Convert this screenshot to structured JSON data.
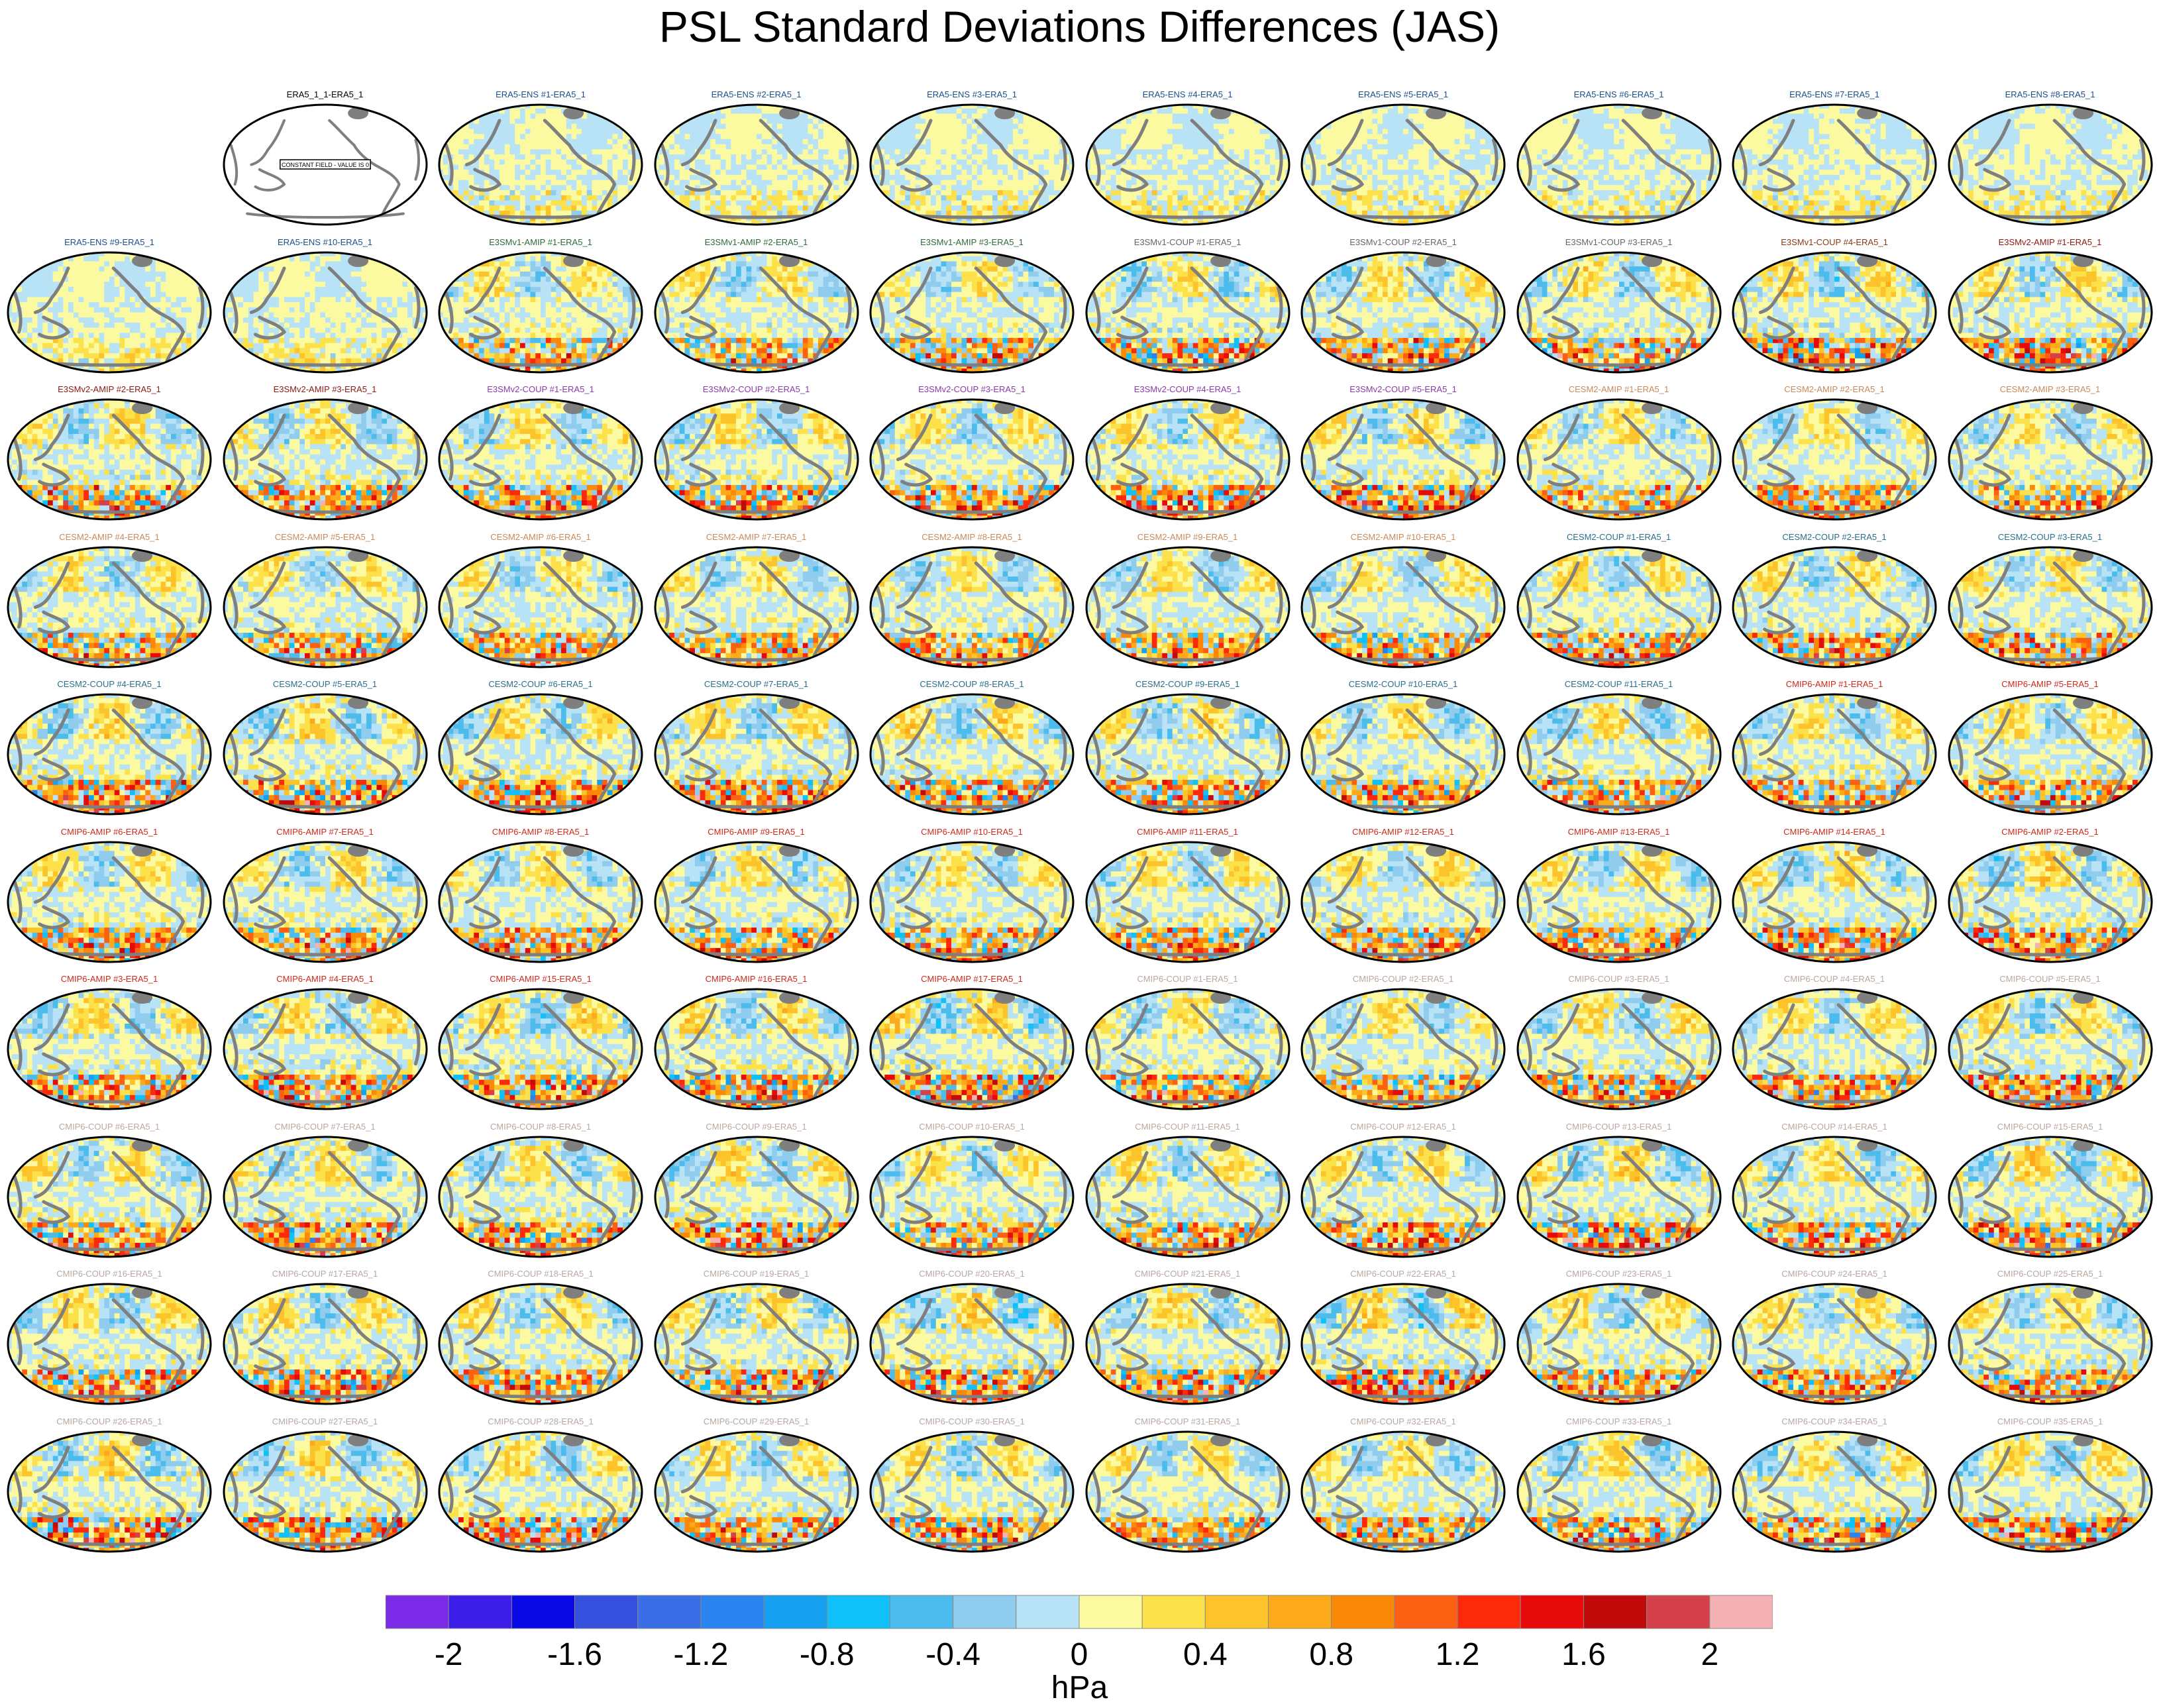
{
  "title": "PSL Standard Deviations Differences (JAS)",
  "colors": {
    "frame": "#000000",
    "land_outline": "#7f7f7f",
    "label_colors": {
      "ref": "#000000",
      "era5": "#1a4f8c",
      "e3smv1_amip": "#2e6b3a",
      "e3smv1_coup": "#666666",
      "e3smv1_coup_b": "#8b3a10",
      "e3smv2_amip": "#8b1a10",
      "e3smv2_coup": "#8a3aa8",
      "cesm2_amip": "#c88a5a",
      "cesm2_coup": "#2a6f8a",
      "cmip6_amip": "#cc2a1a",
      "cmip6_coup": "#b8a8a0"
    }
  },
  "colorbar": {
    "levels": [
      -2.2,
      -2,
      -1.8,
      -1.6,
      -1.4,
      -1.2,
      -1,
      -0.8,
      -0.6,
      -0.4,
      -0.2,
      0,
      0.2,
      0.4,
      0.6,
      0.8,
      1,
      1.2,
      1.4,
      1.6,
      1.8,
      2,
      2.2
    ],
    "colors": [
      "#7b2ae8",
      "#3d1ee8",
      "#0a0ae6",
      "#3450dc",
      "#3a6ee6",
      "#2a84f0",
      "#16a0f0",
      "#10c0f8",
      "#4cbcec",
      "#90cced",
      "#b8e2f6",
      "#fcfaa0",
      "#fce14a",
      "#fcc42a",
      "#fcaa1a",
      "#fc8808",
      "#fc6012",
      "#fc2a0a",
      "#e60a0a",
      "#c30a0a",
      "#d6404a",
      "#f4b2b4"
    ],
    "tick_labels": [
      "-2",
      "-1.6",
      "-1.2",
      "-0.8",
      "-0.4",
      "0",
      "0.4",
      "0.8",
      "1.2",
      "1.6",
      "2"
    ],
    "tick_values": [
      -2,
      -1.6,
      -1.2,
      -0.8,
      -0.4,
      0,
      0.4,
      0.8,
      1.2,
      1.6,
      2
    ],
    "units": "hPa"
  },
  "reference_panel": {
    "label": "ERA5_1_1-ERA5_1",
    "note": "CONSTANT FIELD - VALUE IS 0"
  },
  "panels": [
    {
      "label": "ERA5-ENS   #1-ERA5_1",
      "group": "era5",
      "intensity": 0.25
    },
    {
      "label": "ERA5-ENS   #2-ERA5_1",
      "group": "era5",
      "intensity": 0.25
    },
    {
      "label": "ERA5-ENS   #3-ERA5_1",
      "group": "era5",
      "intensity": 0.25
    },
    {
      "label": "ERA5-ENS   #4-ERA5_1",
      "group": "era5",
      "intensity": 0.25
    },
    {
      "label": "ERA5-ENS   #5-ERA5_1",
      "group": "era5",
      "intensity": 0.25
    },
    {
      "label": "ERA5-ENS   #6-ERA5_1",
      "group": "era5",
      "intensity": 0.25
    },
    {
      "label": "ERA5-ENS   #7-ERA5_1",
      "group": "era5",
      "intensity": 0.25
    },
    {
      "label": "ERA5-ENS   #8-ERA5_1",
      "group": "era5",
      "intensity": 0.25
    },
    {
      "label": "ERA5-ENS   #9-ERA5_1",
      "group": "era5",
      "intensity": 0.25
    },
    {
      "label": "ERA5-ENS   #10-ERA5_1",
      "group": "era5",
      "intensity": 0.25
    },
    {
      "label": "E3SMv1-AMIP #1-ERA5_1",
      "group": "e3smv1_amip",
      "intensity": 0.8
    },
    {
      "label": "E3SMv1-AMIP #2-ERA5_1",
      "group": "e3smv1_amip",
      "intensity": 0.8
    },
    {
      "label": "E3SMv1-AMIP #3-ERA5_1",
      "group": "e3smv1_amip",
      "intensity": 0.8
    },
    {
      "label": "E3SMv1-COUP #1-ERA5_1",
      "group": "e3smv1_coup",
      "intensity": 0.9
    },
    {
      "label": "E3SMv1-COUP #2-ERA5_1",
      "group": "e3smv1_coup",
      "intensity": 0.9
    },
    {
      "label": "E3SMv1-COUP #3-ERA5_1",
      "group": "e3smv1_coup",
      "intensity": 0.9
    },
    {
      "label": "E3SMv1-COUP #4-ERA5_1",
      "group": "e3smv1_coup_b",
      "intensity": 1.0
    },
    {
      "label": "E3SMv2-AMIP #1-ERA5_1",
      "group": "e3smv2_amip",
      "intensity": 0.9
    },
    {
      "label": "E3SMv2-AMIP #2-ERA5_1",
      "group": "e3smv2_amip",
      "intensity": 0.9
    },
    {
      "label": "E3SMv2-AMIP #3-ERA5_1",
      "group": "e3smv2_amip",
      "intensity": 0.9
    },
    {
      "label": "E3SMv2-COUP #1-ERA5_1",
      "group": "e3smv2_coup",
      "intensity": 0.9
    },
    {
      "label": "E3SMv2-COUP #2-ERA5_1",
      "group": "e3smv2_coup",
      "intensity": 0.9
    },
    {
      "label": "E3SMv2-COUP #3-ERA5_1",
      "group": "e3smv2_coup",
      "intensity": 0.9
    },
    {
      "label": "E3SMv2-COUP #4-ERA5_1",
      "group": "e3smv2_coup",
      "intensity": 0.9
    },
    {
      "label": "E3SMv2-COUP #5-ERA5_1",
      "group": "e3smv2_coup",
      "intensity": 0.95
    },
    {
      "label": "CESM2-AMIP #1-ERA5_1",
      "group": "cesm2_amip",
      "intensity": 0.8
    },
    {
      "label": "CESM2-AMIP #2-ERA5_1",
      "group": "cesm2_amip",
      "intensity": 0.8
    },
    {
      "label": "CESM2-AMIP #3-ERA5_1",
      "group": "cesm2_amip",
      "intensity": 0.8
    },
    {
      "label": "CESM2-AMIP #4-ERA5_1",
      "group": "cesm2_amip",
      "intensity": 0.8
    },
    {
      "label": "CESM2-AMIP #5-ERA5_1",
      "group": "cesm2_amip",
      "intensity": 0.8
    },
    {
      "label": "CESM2-AMIP #6-ERA5_1",
      "group": "cesm2_amip",
      "intensity": 0.8
    },
    {
      "label": "CESM2-AMIP #7-ERA5_1",
      "group": "cesm2_amip",
      "intensity": 0.8
    },
    {
      "label": "CESM2-AMIP #8-ERA5_1",
      "group": "cesm2_amip",
      "intensity": 0.8
    },
    {
      "label": "CESM2-AMIP #9-ERA5_1",
      "group": "cesm2_amip",
      "intensity": 0.8
    },
    {
      "label": "CESM2-AMIP #10-ERA5_1",
      "group": "cesm2_amip",
      "intensity": 0.8
    },
    {
      "label": "CESM2-COUP #1-ERA5_1",
      "group": "cesm2_coup",
      "intensity": 0.85
    },
    {
      "label": "CESM2-COUP #2-ERA5_1",
      "group": "cesm2_coup",
      "intensity": 0.85
    },
    {
      "label": "CESM2-COUP #3-ERA5_1",
      "group": "cesm2_coup",
      "intensity": 0.85
    },
    {
      "label": "CESM2-COUP #4-ERA5_1",
      "group": "cesm2_coup",
      "intensity": 0.95
    },
    {
      "label": "CESM2-COUP #5-ERA5_1",
      "group": "cesm2_coup",
      "intensity": 0.95
    },
    {
      "label": "CESM2-COUP #6-ERA5_1",
      "group": "cesm2_coup",
      "intensity": 0.95
    },
    {
      "label": "CESM2-COUP #7-ERA5_1",
      "group": "cesm2_coup",
      "intensity": 0.95
    },
    {
      "label": "CESM2-COUP #8-ERA5_1",
      "group": "cesm2_coup",
      "intensity": 0.95
    },
    {
      "label": "CESM2-COUP #9-ERA5_1",
      "group": "cesm2_coup",
      "intensity": 0.95
    },
    {
      "label": "CESM2-COUP #10-ERA5_1",
      "group": "cesm2_coup",
      "intensity": 0.9
    },
    {
      "label": "CESM2-COUP #11-ERA5_1",
      "group": "cesm2_coup",
      "intensity": 0.9
    },
    {
      "label": "CMIP6-AMIP #1-ERA5_1",
      "group": "cmip6_amip",
      "intensity": 0.85
    },
    {
      "label": "CMIP6-AMIP #5-ERA5_1",
      "group": "cmip6_amip",
      "intensity": 0.85
    },
    {
      "label": "CMIP6-AMIP #6-ERA5_1",
      "group": "cmip6_amip",
      "intensity": 0.85
    },
    {
      "label": "CMIP6-AMIP #7-ERA5_1",
      "group": "cmip6_amip",
      "intensity": 0.9
    },
    {
      "label": "CMIP6-AMIP #8-ERA5_1",
      "group": "cmip6_amip",
      "intensity": 0.85
    },
    {
      "label": "CMIP6-AMIP #9-ERA5_1",
      "group": "cmip6_amip",
      "intensity": 0.85
    },
    {
      "label": "CMIP6-AMIP #10-ERA5_1",
      "group": "cmip6_amip",
      "intensity": 0.85
    },
    {
      "label": "CMIP6-AMIP #11-ERA5_1",
      "group": "cmip6_amip",
      "intensity": 0.85
    },
    {
      "label": "CMIP6-AMIP #12-ERA5_1",
      "group": "cmip6_amip",
      "intensity": 0.85
    },
    {
      "label": "CMIP6-AMIP #13-ERA5_1",
      "group": "cmip6_amip",
      "intensity": 0.85
    },
    {
      "label": "CMIP6-AMIP #14-ERA5_1",
      "group": "cmip6_amip",
      "intensity": 0.9
    },
    {
      "label": "CMIP6-AMIP #2-ERA5_1",
      "group": "cmip6_amip",
      "intensity": 1.0
    },
    {
      "label": "CMIP6-AMIP #3-ERA5_1",
      "group": "cmip6_amip",
      "intensity": 0.9
    },
    {
      "label": "CMIP6-AMIP #4-ERA5_1",
      "group": "cmip6_amip",
      "intensity": 0.95
    },
    {
      "label": "CMIP6-AMIP #15-ERA5_1",
      "group": "cmip6_amip",
      "intensity": 1.0
    },
    {
      "label": "CMIP6-AMIP #16-ERA5_1",
      "group": "cmip6_amip",
      "intensity": 1.0
    },
    {
      "label": "CMIP6-AMIP #17-ERA5_1",
      "group": "cmip6_amip",
      "intensity": 1.1
    },
    {
      "label": "CMIP6-COUP #1-ERA5_1",
      "group": "cmip6_coup",
      "intensity": 0.85
    },
    {
      "label": "CMIP6-COUP #2-ERA5_1",
      "group": "cmip6_coup",
      "intensity": 0.85
    },
    {
      "label": "CMIP6-COUP #3-ERA5_1",
      "group": "cmip6_coup",
      "intensity": 0.9
    },
    {
      "label": "CMIP6-COUP #4-ERA5_1",
      "group": "cmip6_coup",
      "intensity": 0.85
    },
    {
      "label": "CMIP6-COUP #5-ERA5_1",
      "group": "cmip6_coup",
      "intensity": 0.95
    },
    {
      "label": "CMIP6-COUP #6-ERA5_1",
      "group": "cmip6_coup",
      "intensity": 0.9
    },
    {
      "label": "CMIP6-COUP #7-ERA5_1",
      "group": "cmip6_coup",
      "intensity": 0.95
    },
    {
      "label": "CMIP6-COUP #8-ERA5_1",
      "group": "cmip6_coup",
      "intensity": 0.9
    },
    {
      "label": "CMIP6-COUP #9-ERA5_1",
      "group": "cmip6_coup",
      "intensity": 0.95
    },
    {
      "label": "CMIP6-COUP #10-ERA5_1",
      "group": "cmip6_coup",
      "intensity": 0.9
    },
    {
      "label": "CMIP6-COUP #11-ERA5_1",
      "group": "cmip6_coup",
      "intensity": 0.85
    },
    {
      "label": "CMIP6-COUP #12-ERA5_1",
      "group": "cmip6_coup",
      "intensity": 0.85
    },
    {
      "label": "CMIP6-COUP #13-ERA5_1",
      "group": "cmip6_coup",
      "intensity": 1.0
    },
    {
      "label": "CMIP6-COUP #14-ERA5_1",
      "group": "cmip6_coup",
      "intensity": 0.9
    },
    {
      "label": "CMIP6-COUP #15-ERA5_1",
      "group": "cmip6_coup",
      "intensity": 1.0
    },
    {
      "label": "CMIP6-COUP #16-ERA5_1",
      "group": "cmip6_coup",
      "intensity": 0.9
    },
    {
      "label": "CMIP6-COUP #17-ERA5_1",
      "group": "cmip6_coup",
      "intensity": 0.9
    },
    {
      "label": "CMIP6-COUP #18-ERA5_1",
      "group": "cmip6_coup",
      "intensity": 0.9
    },
    {
      "label": "CMIP6-COUP #19-ERA5_1",
      "group": "cmip6_coup",
      "intensity": 0.95
    },
    {
      "label": "CMIP6-COUP #20-ERA5_1",
      "group": "cmip6_coup",
      "intensity": 1.1
    },
    {
      "label": "CMIP6-COUP #21-ERA5_1",
      "group": "cmip6_coup",
      "intensity": 0.95
    },
    {
      "label": "CMIP6-COUP #22-ERA5_1",
      "group": "cmip6_coup",
      "intensity": 1.1
    },
    {
      "label": "CMIP6-COUP #23-ERA5_1",
      "group": "cmip6_coup",
      "intensity": 0.85
    },
    {
      "label": "CMIP6-COUP #24-ERA5_1",
      "group": "cmip6_coup",
      "intensity": 0.85
    },
    {
      "label": "CMIP6-COUP #25-ERA5_1",
      "group": "cmip6_coup",
      "intensity": 0.85
    },
    {
      "label": "CMIP6-COUP #26-ERA5_1",
      "group": "cmip6_coup",
      "intensity": 1.0
    },
    {
      "label": "CMIP6-COUP #27-ERA5_1",
      "group": "cmip6_coup",
      "intensity": 1.0
    },
    {
      "label": "CMIP6-COUP #28-ERA5_1",
      "group": "cmip6_coup",
      "intensity": 0.95
    },
    {
      "label": "CMIP6-COUP #29-ERA5_1",
      "group": "cmip6_coup",
      "intensity": 0.9
    },
    {
      "label": "CMIP6-COUP #30-ERA5_1",
      "group": "cmip6_coup",
      "intensity": 0.9
    },
    {
      "label": "CMIP6-COUP #31-ERA5_1",
      "group": "cmip6_coup",
      "intensity": 0.8
    },
    {
      "label": "CMIP6-COUP #32-ERA5_1",
      "group": "cmip6_coup",
      "intensity": 0.85
    },
    {
      "label": "CMIP6-COUP #33-ERA5_1",
      "group": "cmip6_coup",
      "intensity": 0.9
    },
    {
      "label": "CMIP6-COUP #34-ERA5_1",
      "group": "cmip6_coup",
      "intensity": 0.9
    },
    {
      "label": "CMIP6-COUP #35-ERA5_1",
      "group": "cmip6_coup",
      "intensity": 0.9
    }
  ]
}
